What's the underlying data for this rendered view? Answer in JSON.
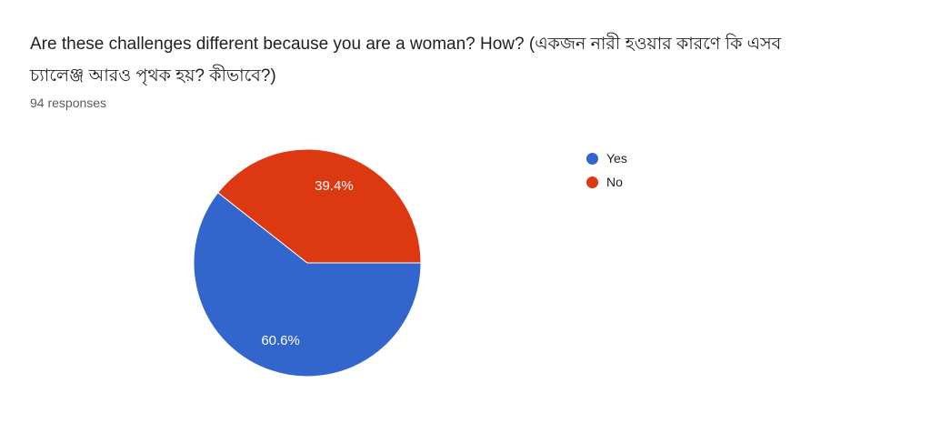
{
  "header": {
    "title_line1": "Are these challenges different because you are a woman? How? (একজন নারী হওয়ার কারণে কি এসব",
    "title_line2": "চ্যালেঞ্জ আরও পৃথক হয়? কীভাবে?)",
    "responses_count": "94 responses"
  },
  "chart_data": {
    "type": "pie",
    "title": "Are these challenges different because you are a woman? How? (একজন নারী হওয়ার কারণে কি এসব চ্যালেঞ্জ আরও পৃথক হয়? কীভাবে?)",
    "responses": 94,
    "categories": [
      "Yes",
      "No"
    ],
    "values": [
      60.6,
      39.4
    ],
    "percent_labels": [
      "60.6%",
      "39.4%"
    ],
    "colors": [
      "#3366cc",
      "#dc3912"
    ],
    "slice_label_color": "#ffffff",
    "legend_position": "right",
    "start_angle_deg": 0,
    "direction": "clockwise"
  }
}
